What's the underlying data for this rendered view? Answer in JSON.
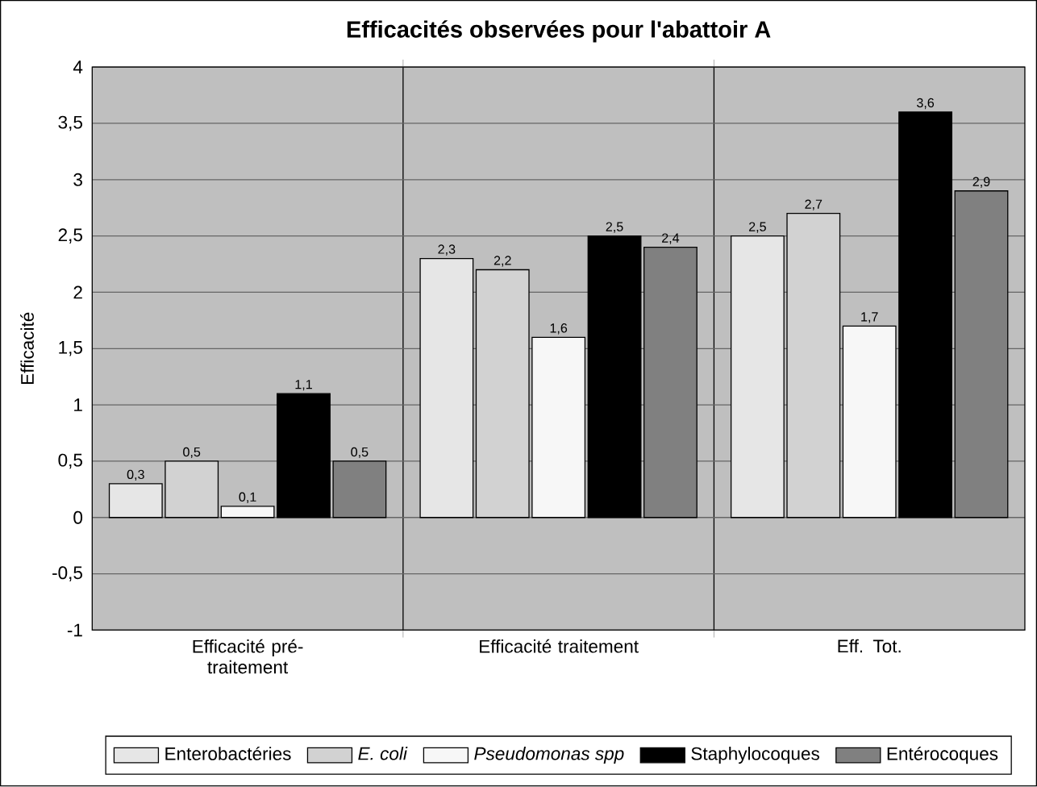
{
  "chart_data": {
    "type": "bar",
    "title": "Efficacités observées pour l'abattoir A",
    "ylabel": "Efficacité",
    "categories": [
      "Efficacité pré- traitement",
      "Efficacité traitement",
      "Eff. Tot."
    ],
    "series": [
      {
        "name": "Enterobactéries",
        "color": "#e6e6e6",
        "values": [
          0.3,
          2.3,
          2.5
        ],
        "value_labels": [
          "0,3",
          "2,3",
          "2,5"
        ]
      },
      {
        "name": "*E. coli*",
        "color": "#d2d2d2",
        "values": [
          0.5,
          2.2,
          2.7
        ],
        "value_labels": [
          "0,5",
          "2,2",
          "2,7"
        ]
      },
      {
        "name": "*Pseudomonas spp*",
        "color": "#f7f7f7",
        "values": [
          0.1,
          1.6,
          1.7
        ],
        "value_labels": [
          "0,1",
          "1,6",
          "1,7"
        ]
      },
      {
        "name": "Staphylocoques",
        "color": "#000000",
        "values": [
          1.1,
          2.5,
          3.6
        ],
        "value_labels": [
          "1,1",
          "2,5",
          "3,6"
        ]
      },
      {
        "name": "Entérocoques",
        "color": "#808080",
        "values": [
          0.5,
          2.4,
          2.9
        ],
        "value_labels": [
          "0,5",
          "2,4",
          "2,9"
        ]
      }
    ],
    "ylim": [
      -1,
      4
    ],
    "yticks": [
      {
        "value": -1,
        "label": "-1"
      },
      {
        "value": -0.5,
        "label": "-0,5"
      },
      {
        "value": 0,
        "label": "0"
      },
      {
        "value": 0.5,
        "label": "0,5"
      },
      {
        "value": 1,
        "label": "1"
      },
      {
        "value": 1.5,
        "label": "1,5"
      },
      {
        "value": 2,
        "label": "2"
      },
      {
        "value": 2.5,
        "label": "2,5"
      },
      {
        "value": 3,
        "label": "3"
      },
      {
        "value": 3.5,
        "label": "3,5"
      },
      {
        "value": 4,
        "label": "4"
      }
    ],
    "grid": "y",
    "legend": "bottom"
  }
}
